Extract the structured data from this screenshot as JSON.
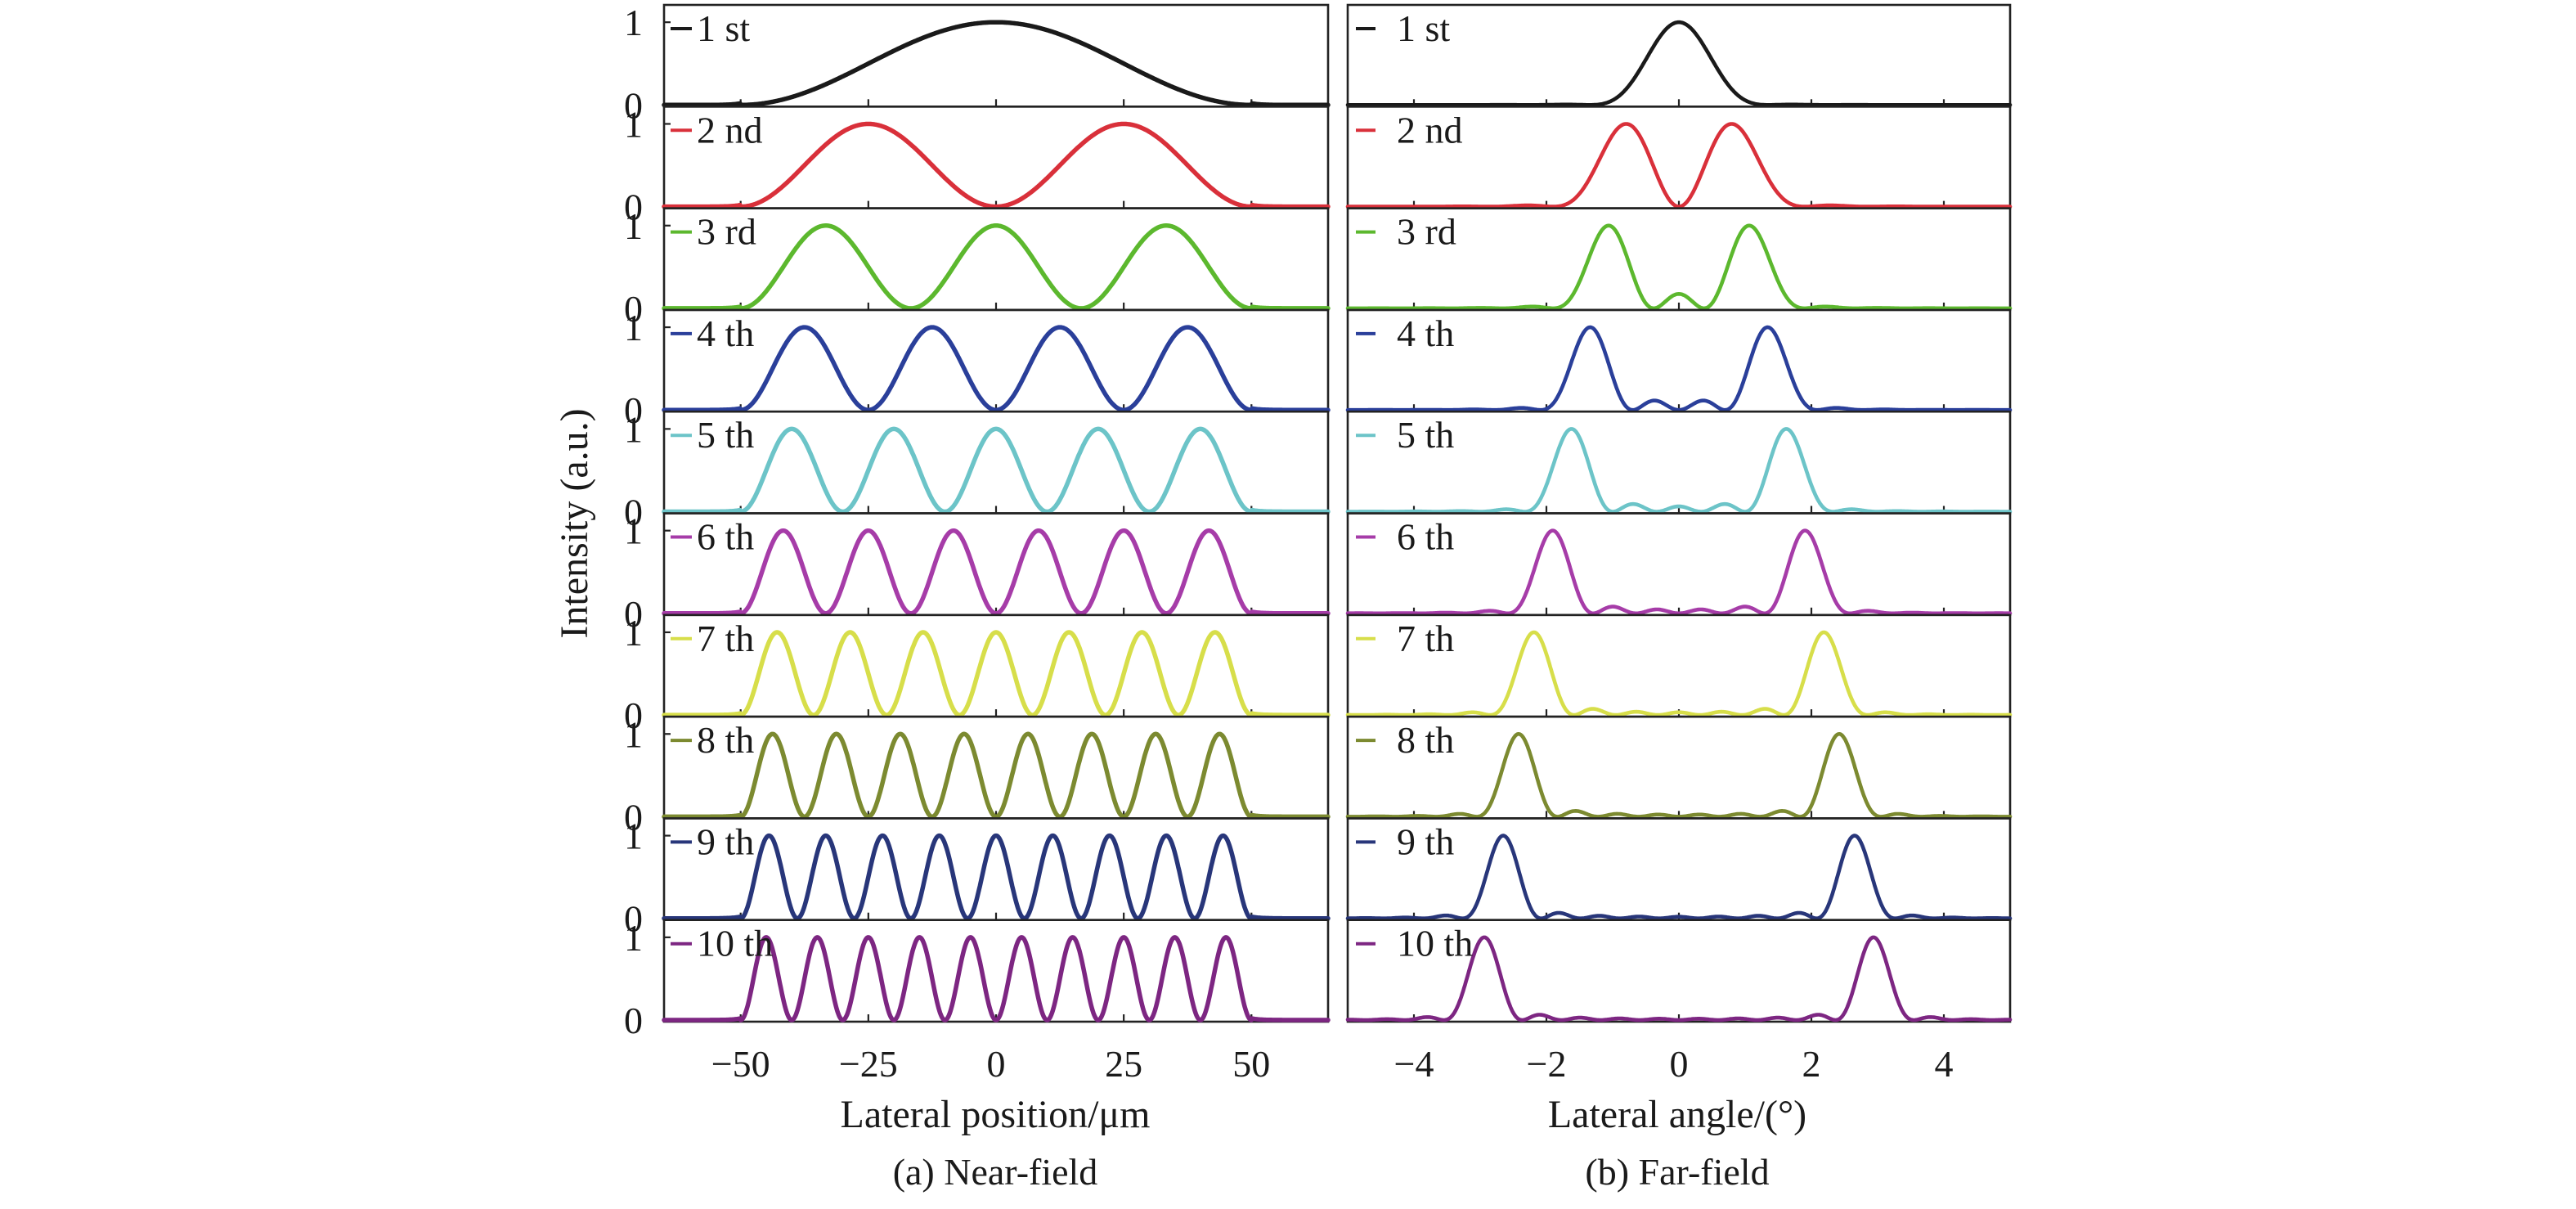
{
  "chart_data": [
    {
      "type": "line",
      "caption": "(a) Near-field",
      "xlabel": "Lateral position/μm",
      "ylabel": "Intensity (a.u.)",
      "xlim": [
        -65,
        65
      ],
      "ylim": [
        0,
        1.15
      ],
      "xticks": [
        -50,
        -25,
        0,
        25,
        50
      ],
      "xtick_labels": [
        "−50",
        "−25",
        "0",
        "25",
        "50"
      ],
      "yticks": [
        0,
        1
      ],
      "ytick_labels": [
        "0",
        "1"
      ],
      "grid": false,
      "legend": "top-left of each panel",
      "waveguide_half_width": 50,
      "series": [
        {
          "name": "1 st",
          "mode": 1,
          "color": "#1a1a1a",
          "peak": 1.0
        },
        {
          "name": "2 nd",
          "mode": 2,
          "color": "#d9303a",
          "peak": 1.0
        },
        {
          "name": "3 rd",
          "mode": 3,
          "color": "#5cb82e",
          "peak": 1.0
        },
        {
          "name": "4 th",
          "mode": 4,
          "color": "#2a3f9a",
          "peak": 1.0
        },
        {
          "name": "5 th",
          "mode": 5,
          "color": "#6cc4c8",
          "peak": 1.0
        },
        {
          "name": "6 th",
          "mode": 6,
          "color": "#a63ca8",
          "peak": 1.0
        },
        {
          "name": "7 th",
          "mode": 7,
          "color": "#d7de4a",
          "peak": 1.0
        },
        {
          "name": "8 th",
          "mode": 8,
          "color": "#7c8a30",
          "peak": 1.0
        },
        {
          "name": "9 th",
          "mode": 9,
          "color": "#28367a",
          "peak": 1.0
        },
        {
          "name": "10 th",
          "mode": 10,
          "color": "#7d2682",
          "peak": 1.0
        }
      ]
    },
    {
      "type": "line",
      "caption": "(b) Far-field",
      "xlabel": "Lateral angle/(°)",
      "ylabel": "",
      "xlim": [
        -5,
        5
      ],
      "ylim": [
        0,
        1.15
      ],
      "xticks": [
        -4,
        -2,
        0,
        2,
        4
      ],
      "xtick_labels": [
        "−4",
        "−2",
        "0",
        "2",
        "4"
      ],
      "yticks": [
        0,
        1
      ],
      "grid": false,
      "legend": "top-left of each panel",
      "series": [
        {
          "name": "1 st",
          "mode": 1,
          "color": "#1a1a1a",
          "peaks": [
            0
          ]
        },
        {
          "name": "2 nd",
          "mode": 2,
          "color": "#d9303a",
          "peaks": [
            -0.5,
            0.5
          ]
        },
        {
          "name": "3 rd",
          "mode": 3,
          "color": "#5cb82e",
          "peaks": [
            -0.8,
            0.8
          ]
        },
        {
          "name": "4 th",
          "mode": 4,
          "color": "#2a3f9a",
          "peaks": [
            -1.1,
            1.1
          ]
        },
        {
          "name": "5 th",
          "mode": 5,
          "color": "#6cc4c8",
          "peaks": [
            -1.4,
            1.4
          ]
        },
        {
          "name": "6 th",
          "mode": 6,
          "color": "#a63ca8",
          "peaks": [
            -1.7,
            1.7
          ]
        },
        {
          "name": "7 th",
          "mode": 7,
          "color": "#d7de4a",
          "peaks": [
            -2.0,
            2.0
          ]
        },
        {
          "name": "8 th",
          "mode": 8,
          "color": "#7c8a30",
          "peaks": [
            -2.25,
            2.25
          ]
        },
        {
          "name": "9 th",
          "mode": 9,
          "color": "#28367a",
          "peaks": [
            -2.5,
            2.5
          ]
        },
        {
          "name": "10 th",
          "mode": 10,
          "color": "#7d2682",
          "peaks": [
            -2.8,
            2.8
          ]
        }
      ]
    }
  ]
}
